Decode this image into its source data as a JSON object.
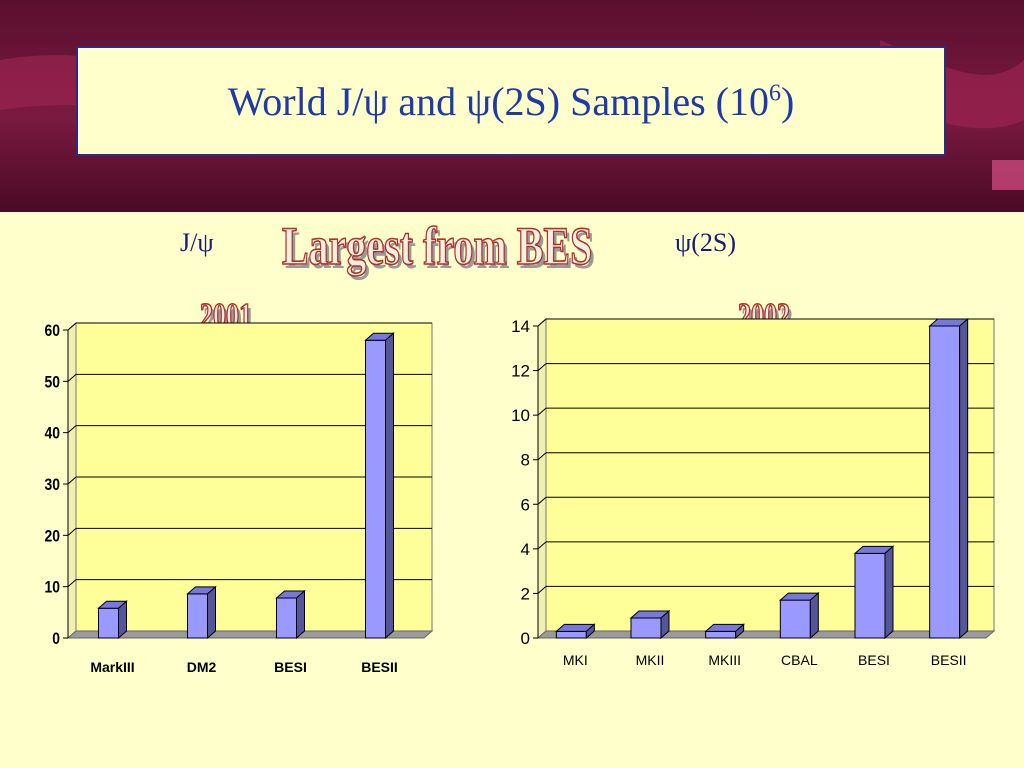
{
  "slide": {
    "title_main": "World J/ψ and ψ(2S) Samples  (10",
    "title_exp": "6",
    "title_close": ")",
    "left_label": "J/ψ",
    "right_label": "ψ(2S)",
    "banner": "Largest from BES"
  },
  "colors": {
    "bar_front": "#9999ff",
    "bar_top": "#7777dd",
    "bar_side": "#55559a",
    "plot_bg": "#ffff99",
    "floor": "#9a9a9a",
    "title": "#1f3aa8"
  },
  "chart_data": [
    {
      "type": "bar",
      "title": "2001",
      "categories": [
        "MarkIII",
        "DM2",
        "BESI",
        "BESII"
      ],
      "values": [
        5.8,
        8.6,
        7.8,
        58
      ],
      "ylim": [
        0,
        60
      ],
      "yticks": [
        0,
        10,
        20,
        30,
        40,
        50,
        60
      ],
      "grid": true
    },
    {
      "type": "bar",
      "title": "2002",
      "categories": [
        "MKI",
        "MKII",
        "MKIII",
        "CBAL",
        "BESI",
        "BESII"
      ],
      "values": [
        0.3,
        0.9,
        0.3,
        1.7,
        3.8,
        14
      ],
      "ylim": [
        0,
        14
      ],
      "yticks": [
        0,
        2,
        4,
        6,
        8,
        10,
        12,
        14
      ],
      "grid": true
    }
  ]
}
